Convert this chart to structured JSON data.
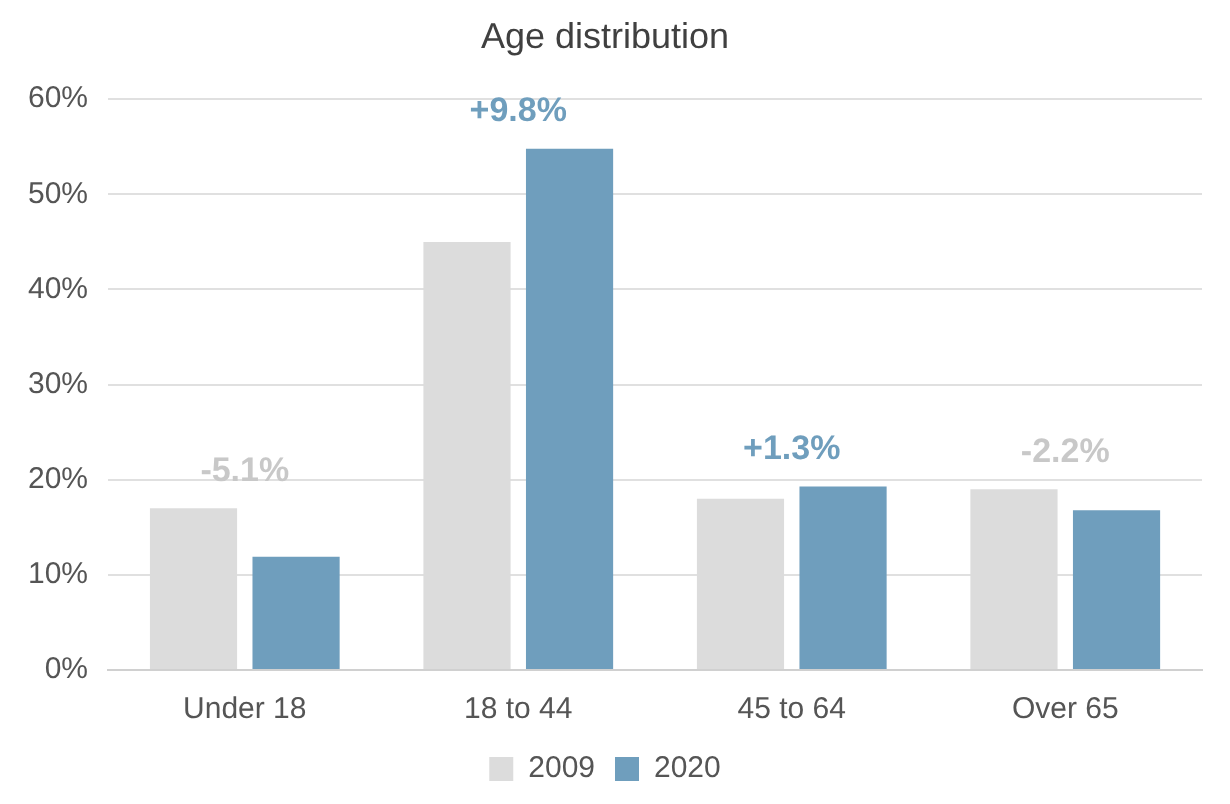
{
  "chart_data": {
    "type": "bar",
    "title": "Age distribution",
    "categories": [
      "Under 18",
      "18 to 44",
      "45 to 64",
      "Over 65"
    ],
    "series": [
      {
        "name": "2009",
        "color": "#dcdcdc",
        "values": [
          17,
          45,
          18,
          19
        ]
      },
      {
        "name": "2020",
        "color": "#6f9ebd",
        "values": [
          11.9,
          54.8,
          19.3,
          16.8
        ]
      }
    ],
    "ylim": [
      0,
      60
    ],
    "yticks": [
      {
        "value": 0,
        "label": "0%"
      },
      {
        "value": 10,
        "label": "10%"
      },
      {
        "value": 20,
        "label": "20%"
      },
      {
        "value": 30,
        "label": "30%"
      },
      {
        "value": 40,
        "label": "40%"
      },
      {
        "value": 50,
        "label": "50%"
      },
      {
        "value": 60,
        "label": "60%"
      }
    ],
    "grid": "y",
    "legend": "bottom",
    "annotations": [
      "-5.1%",
      "+9.8%",
      "+1.3%",
      "-2.2%"
    ]
  }
}
